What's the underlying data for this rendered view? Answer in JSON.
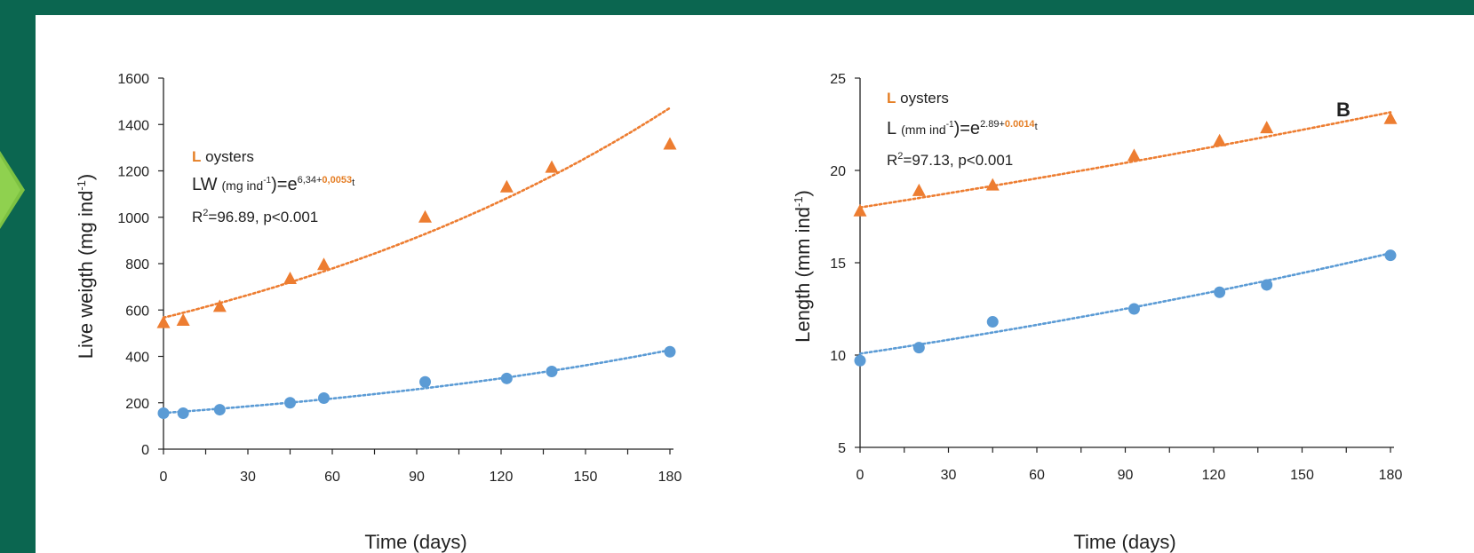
{
  "colors": {
    "background": "#0b6650",
    "panel": "#ffffff",
    "accent_arrow": "#7dc242",
    "orange": "#ed7d31",
    "blue": "#5b9bd5"
  },
  "chart_data": [
    {
      "type": "scatter",
      "panel_label": "",
      "xlabel": "Time (days)",
      "ylabel": "Live weigth (mg ind-1)",
      "ylabel_main": "Live weigth (mg ind",
      "ylabel_sup": "-1",
      "ylabel_close": ")",
      "xlim": [
        0,
        180
      ],
      "ylim": [
        0,
        1600
      ],
      "xticks": [
        "0",
        "30",
        "60",
        "90",
        "120",
        "150",
        "180"
      ],
      "yticks": [
        "0",
        "200",
        "400",
        "600",
        "800",
        "1000",
        "1200",
        "1400",
        "1600"
      ],
      "x_tick_values": [
        0,
        30,
        60,
        90,
        120,
        150,
        180
      ],
      "y_tick_values": [
        0,
        200,
        400,
        600,
        800,
        1000,
        1200,
        1400,
        1600
      ],
      "grid": false,
      "series": [
        {
          "marker": "triangle",
          "color": "#ed7d31",
          "points": [
            [
              0,
              545
            ],
            [
              7,
              555
            ],
            [
              20,
              615
            ],
            [
              45,
              735
            ],
            [
              57,
              795
            ],
            [
              93,
              1000
            ],
            [
              122,
              1130
            ],
            [
              138,
              1215
            ],
            [
              180,
              1315
            ]
          ],
          "trend": {
            "type": "exponential",
            "a": 6.34,
            "b": 0.0053
          }
        },
        {
          "marker": "circle",
          "color": "#5b9bd5",
          "points": [
            [
              0,
              155
            ],
            [
              7,
              155
            ],
            [
              20,
              170
            ],
            [
              45,
              200
            ],
            [
              57,
              220
            ],
            [
              93,
              290
            ],
            [
              122,
              305
            ],
            [
              138,
              335
            ],
            [
              180,
              420
            ]
          ],
          "trend": {
            "type": "exponential",
            "a": 5.05,
            "b": 0.0056
          }
        }
      ],
      "annotation": {
        "letter": "L",
        "name": " oysters",
        "eq_prefix": "LW",
        "eq_unit": "(mg ind",
        "eq_unit_sup": "-1",
        "eq_mid": ")=e",
        "eq_exp_base": "6,34+",
        "eq_exp_coef": "0,0053",
        "eq_exp_var": "t",
        "r2_label": "R",
        "r2_sup": "2",
        "r2_rest": "=96.89, p<0.001"
      }
    },
    {
      "type": "scatter",
      "panel_label": "B",
      "xlabel": "Time (days)",
      "ylabel": "Length (mm ind-1)",
      "ylabel_main": "Length (mm ind",
      "ylabel_sup": "-1",
      "ylabel_close": ")",
      "xlim": [
        0,
        180
      ],
      "ylim": [
        5,
        25
      ],
      "xticks": [
        "0",
        "30",
        "60",
        "90",
        "120",
        "150",
        "180"
      ],
      "yticks": [
        "5",
        "10",
        "15",
        "20",
        "25"
      ],
      "x_tick_values": [
        0,
        30,
        60,
        90,
        120,
        150,
        180
      ],
      "y_tick_values": [
        5,
        10,
        15,
        20,
        25
      ],
      "grid": false,
      "series": [
        {
          "marker": "triangle",
          "color": "#ed7d31",
          "points": [
            [
              0,
              17.8
            ],
            [
              20,
              18.9
            ],
            [
              45,
              19.2
            ],
            [
              93,
              20.8
            ],
            [
              122,
              21.6
            ],
            [
              138,
              22.3
            ],
            [
              180,
              22.8
            ]
          ],
          "trend": {
            "type": "exponential",
            "a": 2.89,
            "b": 0.0014
          }
        },
        {
          "marker": "circle",
          "color": "#5b9bd5",
          "points": [
            [
              0,
              9.7
            ],
            [
              20,
              10.4
            ],
            [
              45,
              11.8
            ],
            [
              93,
              12.5
            ],
            [
              122,
              13.4
            ],
            [
              138,
              13.8
            ],
            [
              180,
              15.4
            ]
          ],
          "trend": {
            "type": "exponential",
            "a": 2.31,
            "b": 0.0024
          }
        }
      ],
      "annotation": {
        "letter": "L",
        "name": " oysters",
        "eq_prefix": "L",
        "eq_unit": "(mm ind",
        "eq_unit_sup": "-1",
        "eq_mid": ")=e",
        "eq_exp_base": "2.89+",
        "eq_exp_coef": "0.0014",
        "eq_exp_var": "t",
        "r2_label": "R",
        "r2_sup": "2",
        "r2_rest": "=97.13, p<0.001"
      }
    }
  ]
}
